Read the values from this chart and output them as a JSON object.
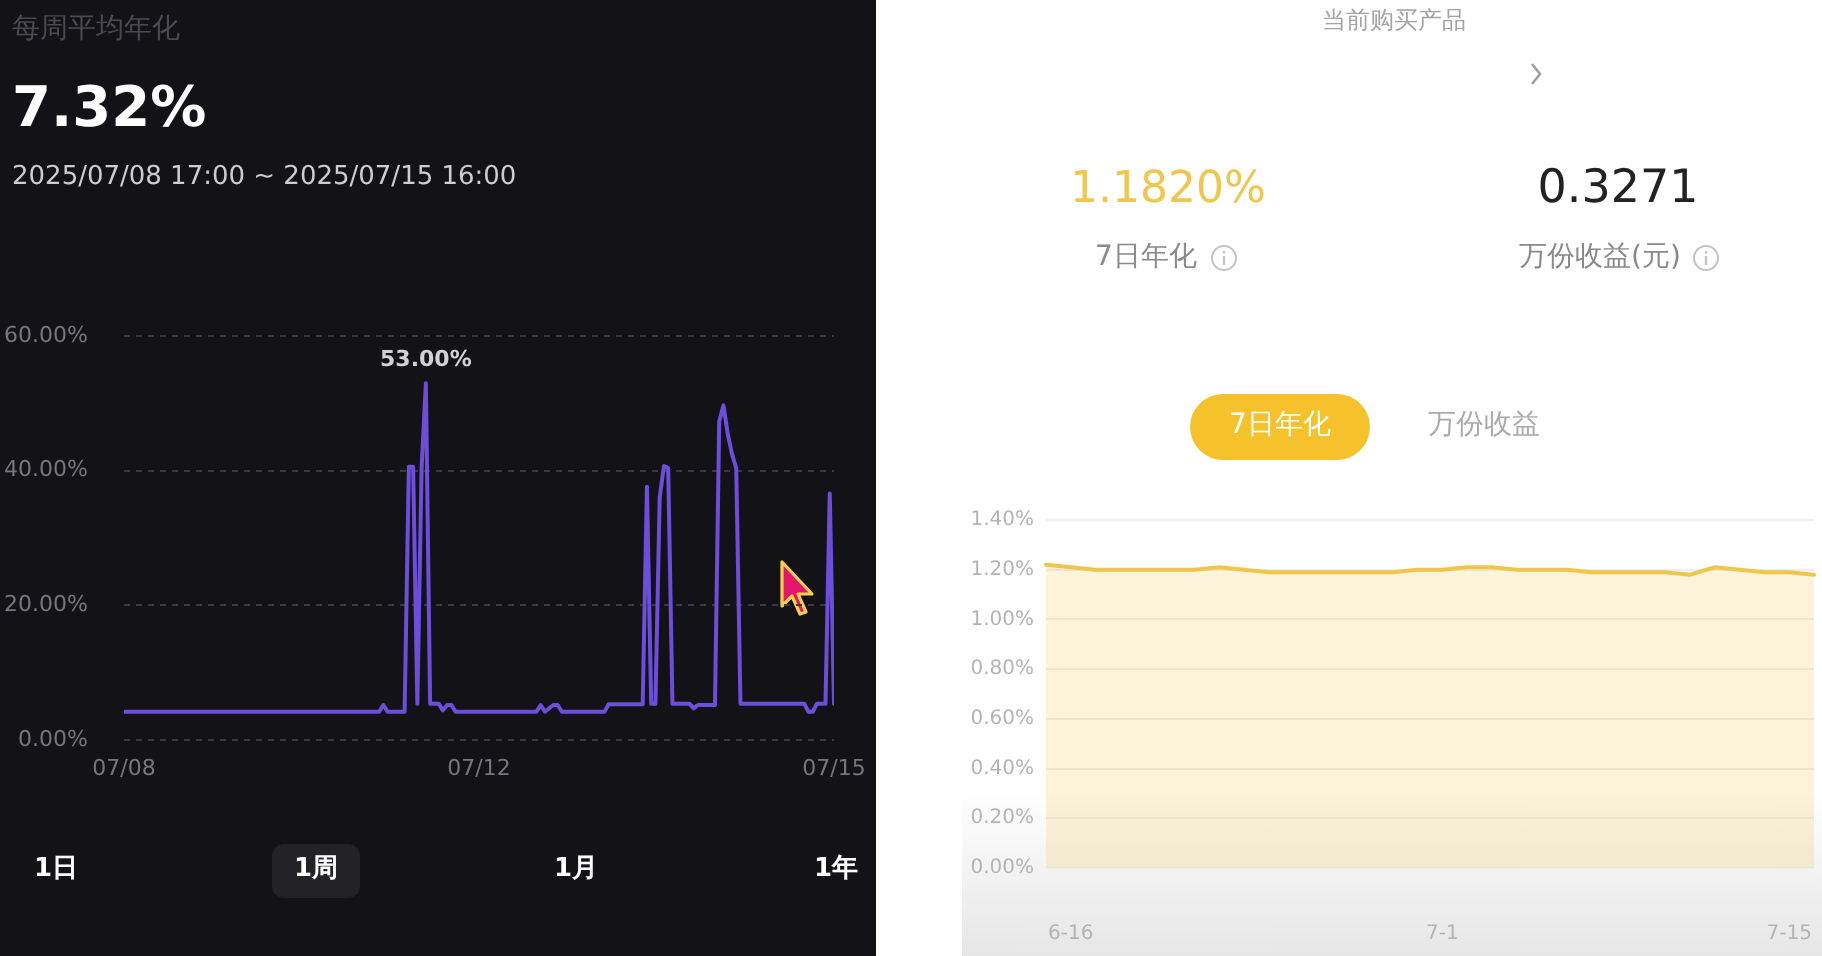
{
  "chart_data": [
    {
      "type": "line",
      "title": "每周平均年化",
      "subtitle": "2025/07/08 17:00 ~ 2025/07/15 16:00",
      "annotations": [
        "7.32%",
        {
          "text": "53.00%",
          "x": "2025-07-11T16:00",
          "y": 53
        },
        "1日",
        "1周",
        "1月",
        "1年"
      ],
      "x": [
        "2025-07-08T17:00",
        "2025-07-11T05:00",
        "2025-07-11T06:00",
        "2025-07-11T07:00",
        "2025-07-11T11:00",
        "2025-07-11T12:00",
        "2025-07-11T13:00",
        "2025-07-11T14:00",
        "2025-07-11T15:00",
        "2025-07-11T16:00",
        "2025-07-11T17:00",
        "2025-07-11T19:00",
        "2025-07-11T20:00",
        "2025-07-11T21:00",
        "2025-07-11T22:00",
        "2025-07-11T23:00",
        "2025-07-12T18:00",
        "2025-07-12T19:00",
        "2025-07-12T20:00",
        "2025-07-12T22:00",
        "2025-07-12T23:00",
        "2025-07-13T00:00",
        "2025-07-13T10:00",
        "2025-07-13T11:00",
        "2025-07-13T19:00",
        "2025-07-13T20:00",
        "2025-07-13T21:00",
        "2025-07-13T22:00",
        "2025-07-13T23:00",
        "2025-07-14T00:00",
        "2025-07-14T01:00",
        "2025-07-14T02:00",
        "2025-07-14T06:00",
        "2025-07-14T07:00",
        "2025-07-14T08:00",
        "2025-07-14T12:00",
        "2025-07-14T13:00",
        "2025-07-14T14:00",
        "2025-07-14T15:00",
        "2025-07-14T16:00",
        "2025-07-14T17:00",
        "2025-07-14T18:00",
        "2025-07-15T09:00",
        "2025-07-15T10:00",
        "2025-07-15T11:00",
        "2025-07-15T12:00",
        "2025-07-15T13:00",
        "2025-07-15T14:00",
        "2025-07-15T15:00",
        "2025-07-15T16:00"
      ],
      "series": [
        {
          "color": "#6b4fdc",
          "values": [
            4.2,
            4.2,
            5.2,
            4.2,
            4.2,
            40.6,
            40.6,
            5.4,
            40.4,
            53,
            5.4,
            5.4,
            4.4,
            5.2,
            5.2,
            4.2,
            4.2,
            5.2,
            4.2,
            5.2,
            5.2,
            4.2,
            4.2,
            5.3,
            5.3,
            37.6,
            5.4,
            5.4,
            36,
            40.7,
            40.4,
            5.4,
            5.4,
            4.7,
            5.2,
            5.2,
            47.3,
            49.7,
            45.5,
            42.5,
            40.4,
            5.4,
            5.4,
            4.2,
            4.2,
            5.4,
            5.4,
            5.4,
            36.6,
            5.4
          ]
        }
      ],
      "xlim": [
        "2025-07-08T17:00",
        "2025-07-15T16:00"
      ],
      "xticks": [
        {
          "value": "2025-07-08T17:00",
          "label": "07/08"
        },
        {
          "value": "2025-07-12T04:30",
          "label": "07/12"
        },
        {
          "value": "2025-07-15T16:00",
          "label": "07/15"
        }
      ],
      "ylim": [
        0,
        60
      ],
      "yticks": [
        {
          "value": 0,
          "label": "0.00%"
        },
        {
          "value": 20,
          "label": "20.00%"
        },
        {
          "value": 40,
          "label": "40.00%"
        },
        {
          "value": 60,
          "label": "60.00%"
        }
      ],
      "grid": "y",
      "marker": "none"
    },
    {
      "type": "area",
      "title": "当前购买产品",
      "annotations": [
        "1.1820%",
        "7日年化",
        "0.3271",
        "万份收益(元)",
        "7日年化",
        "万份收益"
      ],
      "categories": [
        null,
        "6-16",
        null,
        null,
        null,
        null,
        null,
        null,
        null,
        null,
        null,
        null,
        null,
        null,
        null,
        null,
        "7-1",
        null,
        null,
        null,
        null,
        null,
        null,
        null,
        null,
        null,
        null,
        null,
        null,
        null,
        "7-15",
        null
      ],
      "series": [
        {
          "color": "#f0c54c",
          "values": [
            1.22,
            1.21,
            1.2,
            1.2,
            1.2,
            1.2,
            1.2,
            1.21,
            1.2,
            1.19,
            1.19,
            1.19,
            1.19,
            1.19,
            1.19,
            1.2,
            1.2,
            1.21,
            1.21,
            1.2,
            1.2,
            1.2,
            1.19,
            1.19,
            1.19,
            1.19,
            1.18,
            1.21,
            1.2,
            1.19,
            1.19,
            1.18
          ]
        }
      ],
      "ylim": [
        0,
        1.4
      ],
      "yticks": [
        {
          "value": 0,
          "label": "0.00%"
        },
        {
          "value": 0.2,
          "label": "0.20%"
        },
        {
          "value": 0.4,
          "label": "0.40%"
        },
        {
          "value": 0.6,
          "label": "0.60%"
        },
        {
          "value": 0.8,
          "label": "0.80%"
        },
        {
          "value": 1,
          "label": "1.00%"
        },
        {
          "value": 1.2,
          "label": "1.20%"
        },
        {
          "value": 1.4,
          "label": "1.40%"
        }
      ],
      "grid": "y",
      "marker": "none"
    }
  ]
}
